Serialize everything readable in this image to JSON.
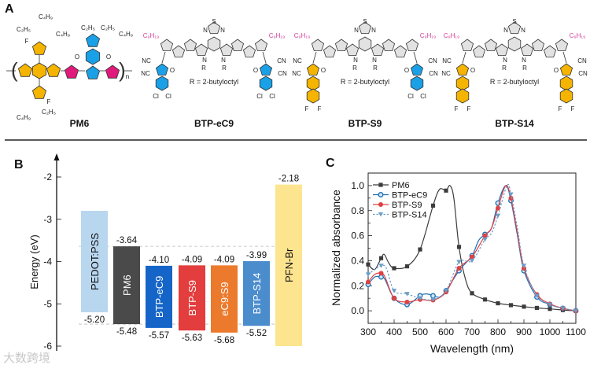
{
  "panels": {
    "a": "A",
    "b": "B",
    "c": "C"
  },
  "panel_a": {
    "r_definition": "R = 2-butyloctyl",
    "pm6": {
      "name": "PM6",
      "alkyl_top_left": "C₂H₅",
      "alkyl_top_left2": "C₄H₉",
      "alkyl_mid1": "C₂H₅",
      "alkyl_mid2": "C₄H₉",
      "alkyl_right1": "C₂H₅",
      "alkyl_right2": "C₄H₉",
      "alkyl_bottom1": "C₂H₅",
      "alkyl_bottom2": "C₄H₉",
      "fluorine": "F",
      "sulfur": "S",
      "oxygen": "O",
      "repeat": "n"
    },
    "acceptors": [
      {
        "name": "BTP-eC9",
        "chain": "C₉H₁₉",
        "left_end": "dichloro",
        "right_end": "dichloro",
        "left_halogen": "Cl",
        "right_halogen": "Cl"
      },
      {
        "name": "BTP-S9",
        "chain": "C₉H₁₉",
        "left_end": "difluoro-naphtho",
        "right_end": "dichloro",
        "left_halogen": "F",
        "right_halogen": "Cl"
      },
      {
        "name": "BTP-S14",
        "chain": "C₉H₁₉",
        "left_end": "difluoro-naphtho",
        "right_end": "difluoro-naphtho",
        "left_halogen": "F",
        "right_halogen": "F"
      }
    ],
    "atoms": {
      "N": "N",
      "S": "S",
      "O": "O",
      "R": "R",
      "NC": "NC",
      "CN": "CN"
    },
    "colors": {
      "orange": "#f5b400",
      "blue": "#1aa0e6",
      "magenta": "#e0197a",
      "grey": "#e2e2e2",
      "pink_text": "#d6409a"
    }
  },
  "panel_b": {
    "ylabel": "Energy (eV)",
    "yticks": [
      -2,
      -3,
      -4,
      -5,
      -6
    ],
    "ylim": [
      -6.2,
      -1.6
    ],
    "dashed_levels": [
      -3.64,
      -5.48
    ],
    "bars": [
      {
        "name": "PEDOT:PSS",
        "top": -2.8,
        "bottom": -5.2,
        "top_label": null,
        "bottom_label": "-5.20",
        "color": "#b9d6ef",
        "text_color": "#111111"
      },
      {
        "name": "PM6",
        "top": -3.64,
        "bottom": -5.48,
        "top_label": "-3.64",
        "bottom_label": "-5.48",
        "color": "#4a4a4a",
        "text_color": "#ffffff"
      },
      {
        "name": "BTP-eC9",
        "top": -4.1,
        "bottom": -5.57,
        "top_label": "-4.10",
        "bottom_label": "-5.57",
        "color": "#1565c8",
        "text_color": "#ffffff"
      },
      {
        "name": "BTP-S9",
        "top": -4.09,
        "bottom": -5.63,
        "top_label": "-4.09",
        "bottom_label": "-5.63",
        "color": "#e33d3d",
        "text_color": "#ffffff"
      },
      {
        "name": "eC9:S9",
        "top": -4.09,
        "bottom": -5.68,
        "top_label": "-4.09",
        "bottom_label": "-5.68",
        "color": "#ec7a2c",
        "text_color": "#ffffff"
      },
      {
        "name": "BTP-S14",
        "top": -3.99,
        "bottom": -5.52,
        "top_label": "-3.99",
        "bottom_label": "-5.52",
        "color": "#4a8ccc",
        "text_color": "#ffffff"
      },
      {
        "name": "PFN-Br",
        "top": -2.18,
        "bottom": -6.0,
        "top_label": "-2.18",
        "bottom_label": null,
        "color": "#fde48f",
        "text_color": "#111111"
      }
    ]
  },
  "chart_data": {
    "type": "line",
    "title": "",
    "xlabel": "Wavelength (nm)",
    "ylabel": "Normalized absorbance",
    "xlim": [
      300,
      1100
    ],
    "ylim": [
      -0.1,
      1.1
    ],
    "xticks": [
      300,
      400,
      500,
      600,
      700,
      800,
      900,
      1000,
      1100
    ],
    "yticks": [
      "0.0",
      "0.2",
      "0.4",
      "0.6",
      "0.8",
      "1.0"
    ],
    "legend_position": "top-left",
    "series": [
      {
        "name": "PM6",
        "color": "#3c3c3c",
        "marker": "square",
        "dashed": false,
        "x": [
          300,
          325,
          350,
          362,
          380,
          400,
          450,
          500,
          550,
          575,
          600,
          615,
          630,
          650,
          675,
          700,
          750,
          800,
          850,
          900,
          950,
          1000,
          1050,
          1100
        ],
        "y": [
          0.37,
          0.33,
          0.42,
          0.45,
          0.38,
          0.34,
          0.355,
          0.49,
          0.84,
          0.97,
          0.96,
          1.0,
          0.9,
          0.51,
          0.25,
          0.14,
          0.09,
          0.06,
          0.045,
          0.033,
          0.023,
          0.015,
          0.006,
          0.0
        ]
      },
      {
        "name": "BTP-eC9",
        "color": "#1f6fb4",
        "marker": "open-circle",
        "dashed": false,
        "x": [
          300,
          325,
          350,
          365,
          400,
          450,
          500,
          525,
          550,
          575,
          600,
          650,
          700,
          725,
          750,
          775,
          800,
          830,
          850,
          875,
          900,
          950,
          1000,
          1050,
          1100
        ],
        "y": [
          0.21,
          0.27,
          0.27,
          0.25,
          0.1,
          0.05,
          0.12,
          0.135,
          0.12,
          0.11,
          0.16,
          0.32,
          0.44,
          0.56,
          0.61,
          0.66,
          0.86,
          1.0,
          0.88,
          0.6,
          0.32,
          0.11,
          0.05,
          0.02,
          0.0
        ]
      },
      {
        "name": "BTP-S9",
        "color": "#e04040",
        "marker": "circle",
        "dashed": false,
        "x": [
          300,
          325,
          350,
          365,
          400,
          450,
          500,
          550,
          600,
          650,
          700,
          750,
          775,
          800,
          830,
          850,
          875,
          900,
          950,
          1000,
          1050,
          1100
        ],
        "y": [
          0.23,
          0.29,
          0.3,
          0.27,
          0.1,
          0.07,
          0.09,
          0.085,
          0.15,
          0.34,
          0.43,
          0.6,
          0.66,
          0.82,
          1.0,
          0.9,
          0.62,
          0.34,
          0.13,
          0.055,
          0.02,
          0.0
        ]
      },
      {
        "name": "BTP-S14",
        "color": "#6a9ec9",
        "marker": "triangle-down",
        "dashed": true,
        "x": [
          300,
          325,
          350,
          370,
          400,
          450,
          500,
          550,
          600,
          650,
          700,
          750,
          775,
          800,
          835,
          850,
          875,
          900,
          950,
          1000,
          1050,
          1100
        ],
        "y": [
          0.29,
          0.33,
          0.36,
          0.34,
          0.16,
          0.135,
          0.1,
          0.09,
          0.16,
          0.39,
          0.4,
          0.57,
          0.62,
          0.76,
          1.0,
          0.93,
          0.66,
          0.36,
          0.12,
          0.05,
          0.02,
          0.0
        ]
      }
    ]
  },
  "watermark": "大数跨境"
}
